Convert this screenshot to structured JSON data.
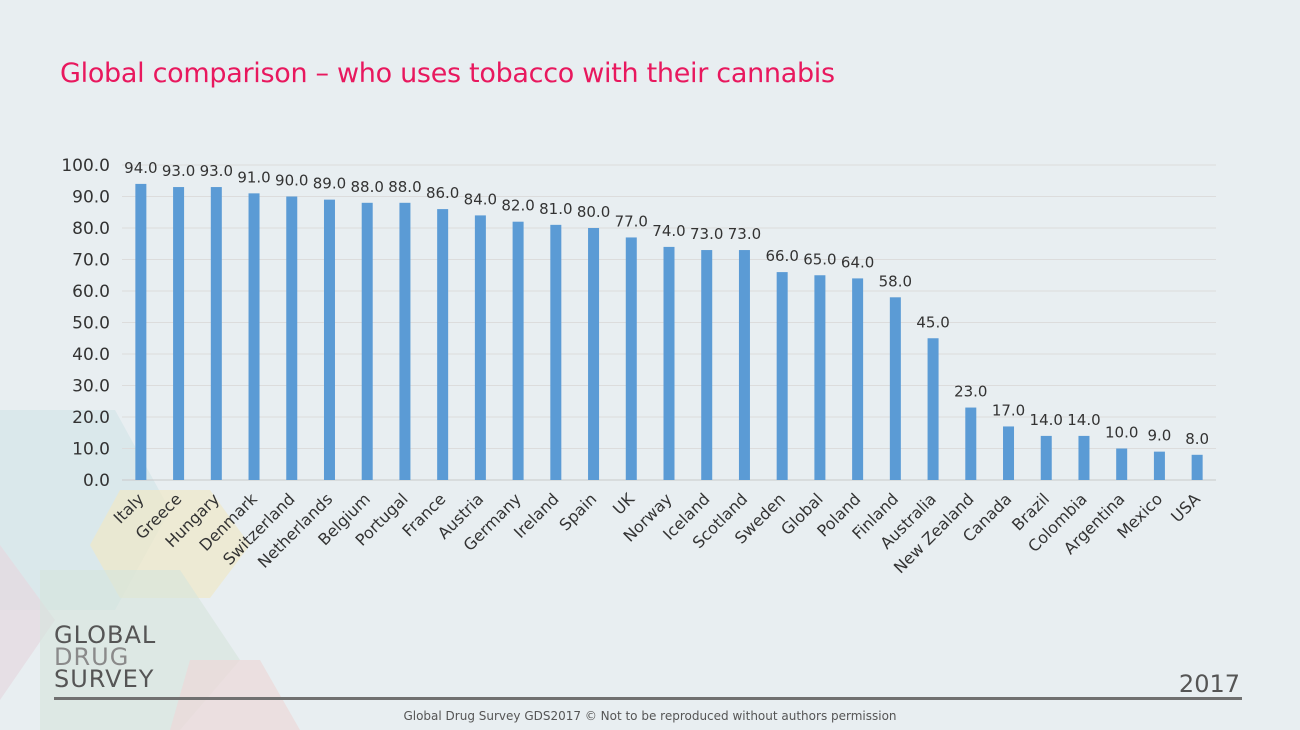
{
  "slide": {
    "title": "Global comparison – who uses tobacco with their cannabis",
    "logo_line1": "GLOBAL",
    "logo_line2": "DRUG",
    "logo_line3": "SURVEY",
    "year": "2017",
    "footer": "Global Drug Survey GDS2017 © Not to be reproduced without authors permission",
    "accent_color": "#e8185e"
  },
  "chart_data": {
    "type": "bar",
    "title": "Global comparison – who uses tobacco with their cannabis",
    "xlabel": "",
    "ylabel": "",
    "ylim": [
      0,
      100
    ],
    "yticks": [
      "0.0",
      "10.0",
      "20.0",
      "30.0",
      "40.0",
      "50.0",
      "60.0",
      "70.0",
      "80.0",
      "90.0",
      "100.0"
    ],
    "grid": true,
    "bar_color": "#5b9bd5",
    "categories": [
      "Italy",
      "Greece",
      "Hungary",
      "Denmark",
      "Switzerland",
      "Netherlands",
      "Belgium",
      "Portugal",
      "France",
      "Austria",
      "Germany",
      "Ireland",
      "Spain",
      "UK",
      "Norway",
      "Iceland",
      "Scotland",
      "Sweden",
      "Global",
      "Poland",
      "Finland",
      "Australia",
      "New Zealand",
      "Canada",
      "Brazil",
      "Colombia",
      "Argentina",
      "Mexico",
      "USA"
    ],
    "values": [
      94.0,
      93.0,
      93.0,
      91.0,
      90.0,
      89.0,
      88.0,
      88.0,
      86.0,
      84.0,
      82.0,
      81.0,
      80.0,
      77.0,
      74.0,
      73.0,
      73.0,
      66.0,
      65.0,
      64.0,
      58.0,
      45.0,
      23.0,
      17.0,
      14.0,
      14.0,
      10.0,
      9.0,
      8.0
    ],
    "data_labels": [
      "94.0",
      "93.0",
      "93.0",
      "91.0",
      "90.0",
      "89.0",
      "88.0",
      "88.0",
      "86.0",
      "84.0",
      "82.0",
      "81.0",
      "80.0",
      "77.0",
      "74.0",
      "73.0",
      "73.0",
      "66.0",
      "65.0",
      "64.0",
      "58.0",
      "45.0",
      "23.0",
      "17.0",
      "14.0",
      "14.0",
      "10.0",
      "9.0",
      "8.0"
    ]
  }
}
